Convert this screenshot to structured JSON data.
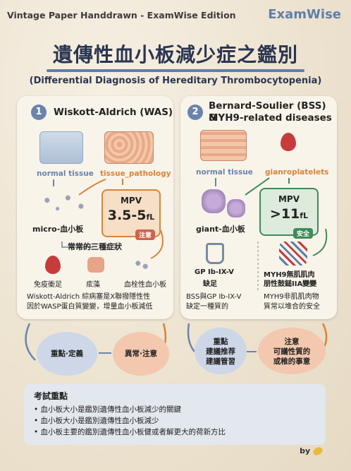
{
  "header": {
    "edition": "Vintage Paper Handdrawn - ExamWise Edition",
    "brand": "ExamWise"
  },
  "title": "遺傳性血小板減少症之鑑別",
  "subtitle": "(Differential Diagnosis of Hereditary Thrombocytopenia)",
  "left_card": {
    "number": "1",
    "title": "Wiskott-Aldrich (WAS)",
    "normal_label": "normal tissue",
    "pathology_label": "tissue_pathology",
    "platelet_label": "micro-血小板",
    "mpv_label": "MPV",
    "mpv_value": "3.5-5",
    "mpv_unit": "fL",
    "badge": "注意",
    "triad_label": "常常的三種症狀",
    "symptoms": [
      "免疫衝足",
      "痃藻",
      "血栓性血小板"
    ],
    "desc_lines": [
      "Wiskott-Aldrich 綜病塞是X聯撥隱性性",
      "因於WASP蛋白質變變，增量血小板減低"
    ]
  },
  "right_card": {
    "number": "2",
    "title_lines": [
      "Bernard-Soulier (BSS) &",
      "MYH9-related diseases"
    ],
    "normal_label": "normal tissue",
    "gianto_label": "gianroplatelets",
    "platelet_label": "giant-血小板",
    "mpv_label": "MPV",
    "mpv_value": ">11",
    "mpv_unit": "fL",
    "badge": "安全",
    "gp_lines": [
      "GP Ib-IX-V",
      "缺足"
    ],
    "myh9_lines": [
      "MYH9無肌肌肉",
      "朋性鼓鎚IIA變變"
    ],
    "gp_desc_lines": [
      "BSS與GP Ib-IX-V",
      "缺定一種質的"
    ],
    "myh9_desc_lines": [
      "MYH9非肌肌肉物",
      "質常以堆合的安全"
    ]
  },
  "bubbles": {
    "b1": "重點·定義",
    "b2": "異常·注意",
    "b3_lines": [
      "重點",
      "建議推荐",
      "建議管習"
    ],
    "b4_lines": [
      "注意",
      "可議性質的",
      "或稚的事意"
    ]
  },
  "exam": {
    "heading": "考試重點",
    "items": [
      "血小板大小是鑑別遺傳性血小板減少的關鍵",
      "血小板大小是鑑別遺傳性血小板減少",
      "血小板主要的鑑別遺傳性血小板健或者解更大的荷新方比"
    ]
  },
  "footer": {
    "by": "by"
  },
  "colors": {
    "accent": "#5f7fa9",
    "orange": "#d8843a",
    "green": "#3f8a5a",
    "badge_red": "#d0624a"
  }
}
